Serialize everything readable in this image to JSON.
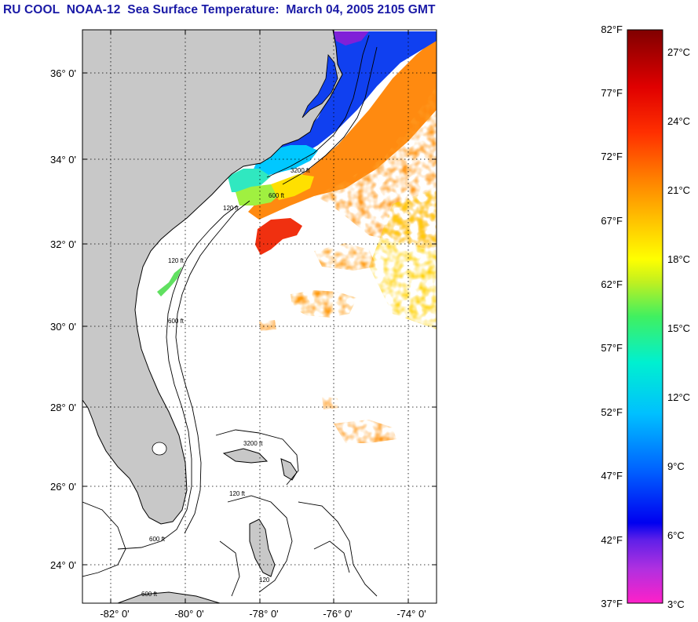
{
  "title": "RU COOL  NOAA-12  Sea Surface Temperature:  March 04, 2005 2105 GMT",
  "map": {
    "lat_range": [
      23,
      37
    ],
    "lon_range": [
      -83,
      -73.5
    ],
    "lat_ticks": [
      "24° 0'",
      "26° 0'",
      "28° 0'",
      "30° 0'",
      "32° 0'",
      "34° 0'",
      "36° 0'"
    ],
    "lon_ticks": [
      "-82° 0'",
      "-80° 0'",
      "-78° 0'",
      "-76° 0'",
      "-74° 0'"
    ],
    "contour_labels": [
      "120 ft",
      "600 ft",
      "3200 ft",
      "120 ft",
      "600 ft",
      "120 ft",
      "600 ft",
      "3200 ft",
      "120",
      "600 ft"
    ],
    "colors": {
      "land": "#c8c8c8",
      "cloud": "#ffffff",
      "grid": "#000000"
    }
  },
  "colorbar": {
    "fahrenheit_labels": [
      "82°F",
      "77°F",
      "72°F",
      "67°F",
      "62°F",
      "57°F",
      "52°F",
      "47°F",
      "42°F",
      "37°F"
    ],
    "celsius_labels": [
      "27°C",
      "24°C",
      "21°C",
      "18°C",
      "15°C",
      "12°C",
      "9°C",
      "6°C",
      "3°C"
    ],
    "gradient": [
      "#ff20c8",
      "#b030e0",
      "#6020e8",
      "#0000f0",
      "#0060ff",
      "#00c0ff",
      "#00f0d0",
      "#40f060",
      "#c0f020",
      "#ffff00",
      "#ffc000",
      "#ff8000",
      "#ff3000",
      "#e00000",
      "#800000"
    ]
  }
}
